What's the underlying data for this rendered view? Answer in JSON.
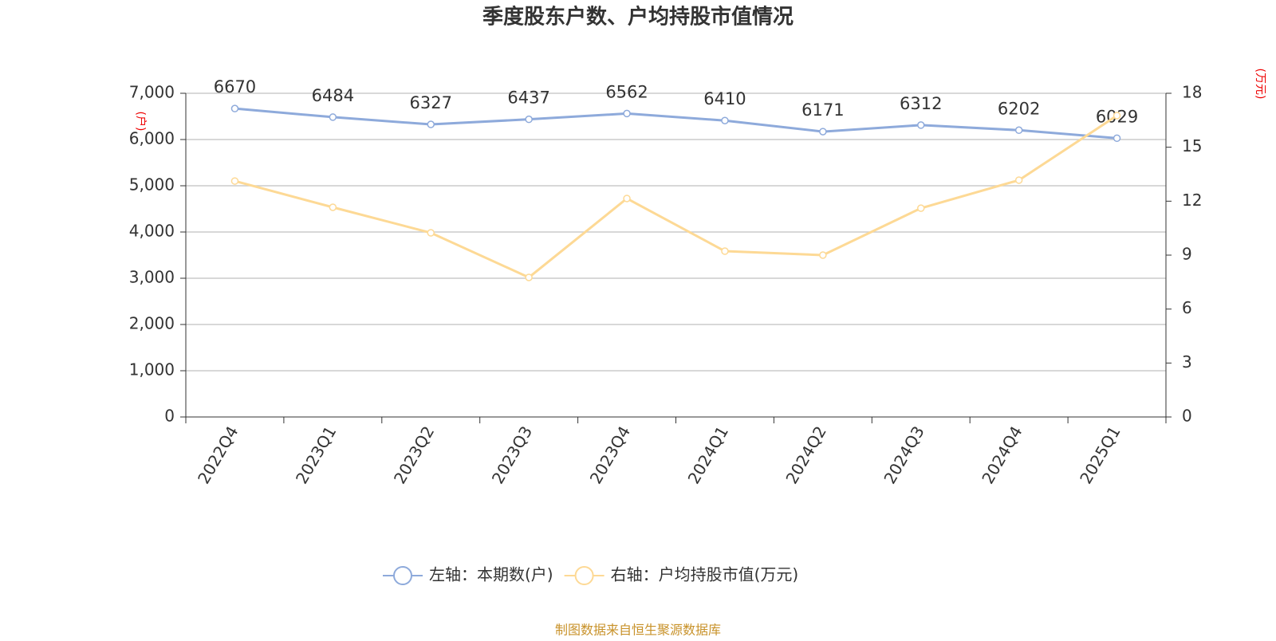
{
  "chart_data": {
    "type": "line",
    "title": "季度股东户数、户均持股市值情况",
    "categories": [
      "2022Q4",
      "2023Q1",
      "2023Q2",
      "2023Q3",
      "2023Q4",
      "2024Q1",
      "2024Q2",
      "2024Q3",
      "2024Q4",
      "2025Q1"
    ],
    "series": [
      {
        "name": "左轴：本期数(户)",
        "color": "#8eaadb",
        "values": [
          6670,
          6484,
          6327,
          6437,
          6562,
          6410,
          6171,
          6312,
          6202,
          6029
        ],
        "show_labels": true
      },
      {
        "name": "右轴：户均持股市值(万元)",
        "color": "#fdd995",
        "axis": "y2",
        "values": [
          13.12,
          11.66,
          10.24,
          7.76,
          12.15,
          9.22,
          9.0,
          11.61,
          13.17,
          16.76
        ],
        "show_labels": false
      }
    ],
    "y_label": "(户)",
    "y2_label": "(万元)",
    "ylim": [
      0,
      7000
    ],
    "yticks": [
      0,
      {
        "value": 1000,
        "label": "1,000"
      },
      {
        "value": 2000,
        "label": "2,000"
      },
      {
        "value": 3000,
        "label": "3,000"
      },
      {
        "value": 4000,
        "label": "4,000"
      },
      {
        "value": 5000,
        "label": "5,000"
      },
      {
        "value": 6000,
        "label": "6,000"
      },
      {
        "value": 7000,
        "label": "7,000"
      }
    ],
    "y2lim": [
      0,
      18
    ],
    "y2ticks": [
      0,
      3,
      6,
      9,
      12,
      15,
      18
    ],
    "grid": true,
    "legend": "bottom",
    "source": "制图数据来自恒生聚源数据库"
  }
}
